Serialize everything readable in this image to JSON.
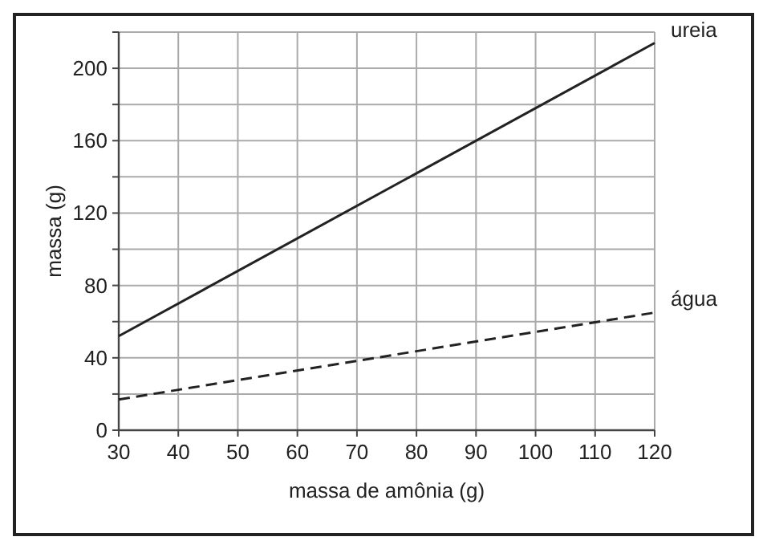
{
  "chart_data": {
    "type": "line",
    "xlabel": "massa de amônia (g)",
    "ylabel": "massa (g)",
    "x": [
      30,
      120
    ],
    "series": [
      {
        "name": "ureia",
        "color": "#222222",
        "values": [
          52,
          214
        ],
        "line_style": "solid"
      },
      {
        "name": "água",
        "color": "#222222",
        "values": [
          17,
          65
        ],
        "line_style": "dashed"
      }
    ],
    "xlim": [
      30,
      120
    ],
    "xticks": [
      30,
      40,
      50,
      60,
      70,
      80,
      90,
      100,
      110,
      120
    ],
    "ylim": [
      0,
      220
    ],
    "yticks": [
      0,
      {
        "value": 20,
        "label": null
      },
      40,
      {
        "value": 60,
        "label": null
      },
      80,
      {
        "value": 100,
        "label": null
      },
      120,
      {
        "value": 140,
        "label": null
      },
      160,
      {
        "value": 180,
        "label": null
      },
      200,
      {
        "value": 220,
        "label": null
      }
    ],
    "grid": true,
    "marker": "none"
  }
}
